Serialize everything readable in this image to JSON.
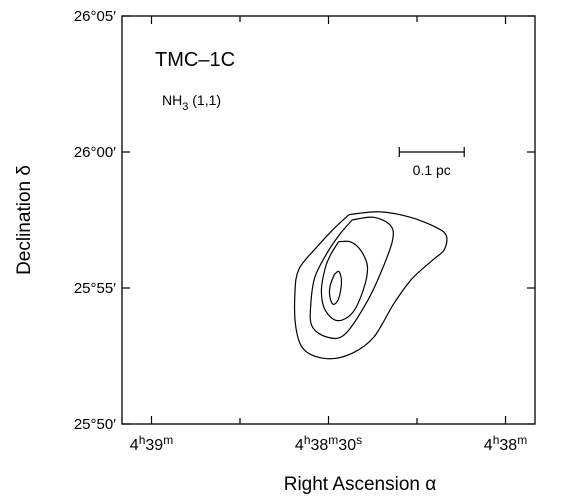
{
  "chart_data": {
    "type": "contour",
    "title": "TMC–1C",
    "subtitle": {
      "base": "NH",
      "sub": "3",
      "rest": " (1,1)"
    },
    "xlabel": "Right  Ascension  α",
    "ylabel": "Declination  δ",
    "xlim_s": [
      -65,
      5
    ],
    "ylim_arcmin": [
      -10,
      5
    ],
    "x_axis_reversed": true,
    "x_ticks": [
      {
        "value": -60,
        "h": "4",
        "m": "39",
        "s": ""
      },
      {
        "value": -30,
        "h": "4",
        "m": "38",
        "s": "30"
      },
      {
        "value": 0,
        "h": "4",
        "m": "38",
        "s": ""
      }
    ],
    "x_minor_ticks": [
      -45,
      -15
    ],
    "y_ticks": [
      {
        "value": 5,
        "label": "26°05′"
      },
      {
        "value": 0,
        "label": "26°00′"
      },
      {
        "value": -5,
        "label": "25°55′"
      },
      {
        "value": -10,
        "label": "25°50′"
      }
    ],
    "scale_bar": {
      "label": "0.1  pc",
      "x_start": -18,
      "x_end": -7,
      "y": 0
    },
    "series": [
      {
        "level": 1,
        "points": [
          [
            -26.5,
            -2.3
          ],
          [
            -21.3,
            -2.2
          ],
          [
            -16.1,
            -2.4
          ],
          [
            -11.5,
            -2.8
          ],
          [
            -10.0,
            -3.1
          ],
          [
            -10.4,
            -3.6
          ],
          [
            -12.5,
            -4.0
          ],
          [
            -16.0,
            -4.7
          ],
          [
            -19.0,
            -5.6
          ],
          [
            -22.3,
            -6.8
          ],
          [
            -26.0,
            -7.4
          ],
          [
            -30.2,
            -7.6
          ],
          [
            -34.0,
            -7.3
          ],
          [
            -35.5,
            -6.5
          ],
          [
            -35.7,
            -5.2
          ],
          [
            -35.0,
            -4.3
          ],
          [
            -32.0,
            -3.5
          ],
          [
            -29.0,
            -2.8
          ],
          [
            -26.5,
            -2.3
          ]
        ]
      },
      {
        "level": 2,
        "points": [
          [
            -26.0,
            -2.5
          ],
          [
            -22.3,
            -2.4
          ],
          [
            -19.5,
            -2.7
          ],
          [
            -19.1,
            -3.2
          ],
          [
            -20.5,
            -4.1
          ],
          [
            -23.2,
            -5.4
          ],
          [
            -27.2,
            -6.7
          ],
          [
            -30.3,
            -6.8
          ],
          [
            -32.8,
            -6.4
          ],
          [
            -33.0,
            -5.6
          ],
          [
            -32.3,
            -4.6
          ],
          [
            -30.2,
            -3.7
          ],
          [
            -28.0,
            -3.0
          ],
          [
            -26.0,
            -2.5
          ]
        ]
      },
      {
        "level": 3,
        "points": [
          [
            -28.3,
            -3.3
          ],
          [
            -26.3,
            -3.3
          ],
          [
            -24.6,
            -3.6
          ],
          [
            -23.4,
            -4.2
          ],
          [
            -24.0,
            -5.0
          ],
          [
            -25.9,
            -5.9
          ],
          [
            -28.5,
            -6.2
          ],
          [
            -30.6,
            -5.8
          ],
          [
            -31.2,
            -5.1
          ],
          [
            -30.6,
            -4.3
          ],
          [
            -29.7,
            -3.8
          ],
          [
            -28.3,
            -3.3
          ]
        ]
      },
      {
        "level": 4,
        "points": [
          [
            -29.0,
            -4.5
          ],
          [
            -28.2,
            -4.4
          ],
          [
            -27.8,
            -4.8
          ],
          [
            -28.3,
            -5.4
          ],
          [
            -29.2,
            -5.6
          ],
          [
            -29.8,
            -5.3
          ],
          [
            -29.7,
            -4.9
          ],
          [
            -29.0,
            -4.5
          ]
        ]
      }
    ]
  }
}
